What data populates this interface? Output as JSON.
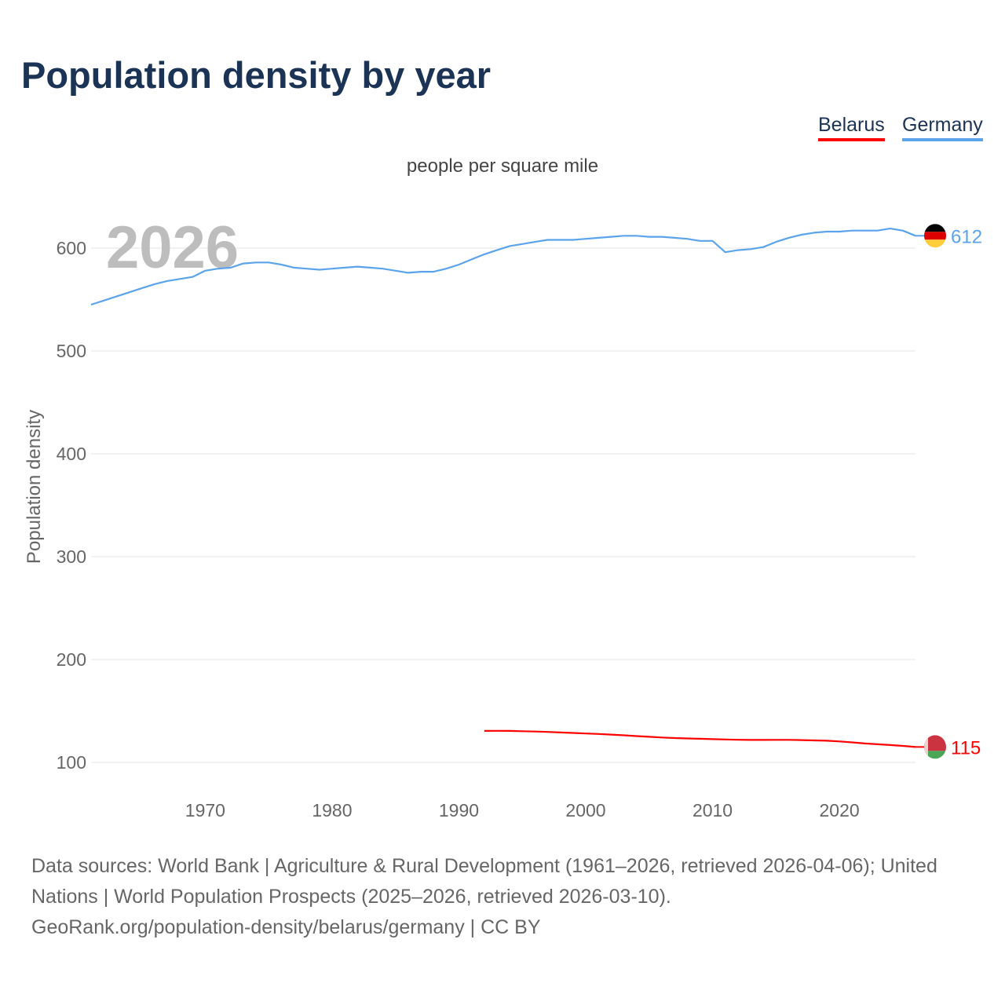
{
  "header": {
    "title": "Population density by year"
  },
  "legend": [
    {
      "label": "Belarus",
      "color": "#ff0000"
    },
    {
      "label": "Germany",
      "color": "#5ba4ec"
    }
  ],
  "chart_data": {
    "type": "line",
    "title": "Population density by year",
    "subtitle": "people per square mile",
    "ylabel": "Population density",
    "xlabel": "",
    "watermark_year": "2026",
    "xlim": [
      1961,
      2026
    ],
    "ylim": [
      100,
      600
    ],
    "yticks": [
      100,
      200,
      300,
      400,
      500,
      600
    ],
    "xticks": [
      1970,
      1980,
      1990,
      2000,
      2010,
      2020
    ],
    "grid": true,
    "legend_position": "top-right",
    "series": [
      {
        "name": "Germany",
        "color": "#5ba4ec",
        "end_label": "612",
        "flag": "germany-flag",
        "start_year": 1961,
        "values": [
          545,
          549,
          553,
          557,
          561,
          565,
          568,
          570,
          572,
          578,
          580,
          581,
          585,
          586,
          586,
          584,
          581,
          580,
          579,
          580,
          581,
          582,
          581,
          580,
          578,
          576,
          577,
          577,
          580,
          584,
          589,
          594,
          598,
          602,
          604,
          606,
          608,
          608,
          608,
          609,
          610,
          611,
          612,
          612,
          611,
          611,
          610,
          609,
          607,
          607,
          596,
          598,
          599,
          601,
          606,
          610,
          613,
          615,
          616,
          616,
          617,
          617,
          617,
          619,
          617,
          612
        ]
      },
      {
        "name": "Belarus",
        "color": "#ff0000",
        "end_label": "115",
        "flag": "belarus-flag",
        "start_year": 1992,
        "values": [
          130.6,
          130.7,
          130.6,
          130.3,
          130,
          129.6,
          129.1,
          128.6,
          128.1,
          127.6,
          127,
          126.3,
          125.6,
          124.9,
          124.2,
          123.7,
          123.3,
          123,
          122.6,
          122.3,
          122,
          121.8,
          121.8,
          121.9,
          121.9,
          121.7,
          121.4,
          121.1,
          120.4,
          119.5,
          118.4,
          117.6,
          116.9,
          116,
          115
        ]
      }
    ]
  },
  "footer": {
    "sources": "Data sources: World Bank | Agriculture & Rural Development (1961–2026, retrieved 2026-04-06); United Nations | World Population Prospects (2025–2026, retrieved 2026-03-10).",
    "link": "GeoRank.org/population-density/belarus/germany | CC BY"
  }
}
